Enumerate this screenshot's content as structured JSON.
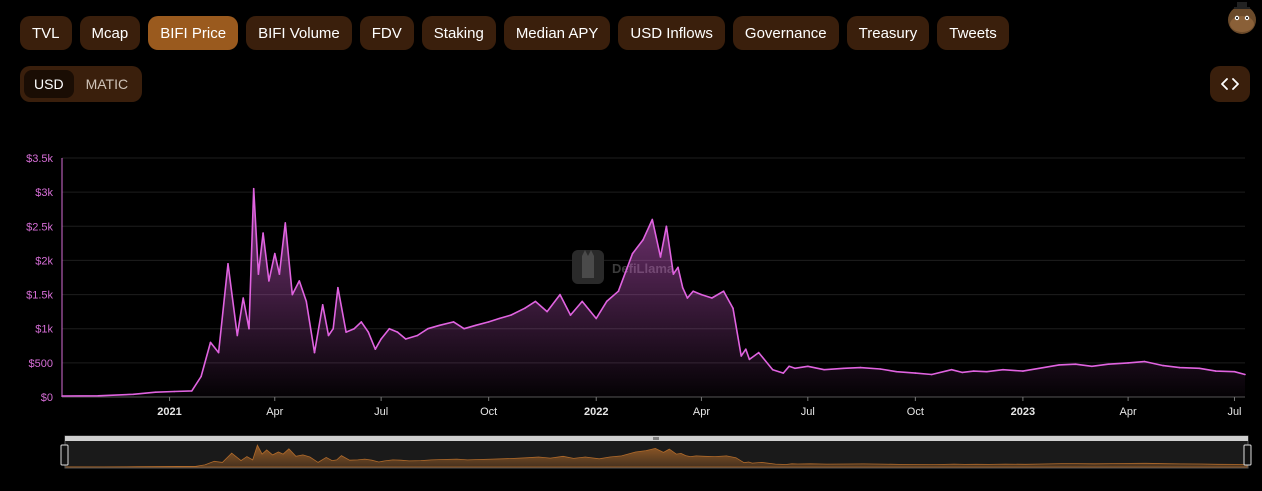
{
  "tabs": [
    {
      "label": "TVL",
      "active": false
    },
    {
      "label": "Mcap",
      "active": false
    },
    {
      "label": "BIFI Price",
      "active": true
    },
    {
      "label": "BIFI Volume",
      "active": false
    },
    {
      "label": "FDV",
      "active": false
    },
    {
      "label": "Staking",
      "active": false
    },
    {
      "label": "Median APY",
      "active": false
    },
    {
      "label": "USD Inflows",
      "active": false
    },
    {
      "label": "Governance",
      "active": false
    },
    {
      "label": "Treasury",
      "active": false
    },
    {
      "label": "Tweets",
      "active": false
    }
  ],
  "currency_toggle": {
    "options": [
      "USD",
      "MATIC"
    ],
    "selected": "USD"
  },
  "embed_icon": "code-brackets-icon",
  "avatar_icon": "llama-avatar-icon",
  "watermark": "DefiLlama",
  "colors": {
    "line": "#e063e0",
    "tab_bg": "#3a1f0c",
    "tab_active": "#9a5a1e",
    "brush": "#b06a2a"
  },
  "chart_data": {
    "type": "area",
    "series": [
      {
        "name": "",
        "x": [
          "2020-10-01",
          "2020-11-01",
          "2020-12-01",
          "2020-12-20",
          "2021-01-05",
          "2021-01-20",
          "2021-01-28",
          "2021-02-05",
          "2021-02-12",
          "2021-02-20",
          "2021-02-28",
          "2021-03-05",
          "2021-03-10",
          "2021-03-14",
          "2021-03-18",
          "2021-03-22",
          "2021-03-27",
          "2021-04-01",
          "2021-04-05",
          "2021-04-10",
          "2021-04-16",
          "2021-04-22",
          "2021-04-28",
          "2021-05-05",
          "2021-05-12",
          "2021-05-17",
          "2021-05-21",
          "2021-05-25",
          "2021-06-01",
          "2021-06-08",
          "2021-06-14",
          "2021-06-20",
          "2021-06-26",
          "2021-07-01",
          "2021-07-08",
          "2021-07-15",
          "2021-07-22",
          "2021-08-01",
          "2021-08-10",
          "2021-08-20",
          "2021-09-01",
          "2021-09-10",
          "2021-09-20",
          "2021-10-01",
          "2021-10-10",
          "2021-10-20",
          "2021-11-01",
          "2021-11-10",
          "2021-11-20",
          "2021-12-01",
          "2021-12-10",
          "2021-12-20",
          "2022-01-01",
          "2022-01-10",
          "2022-01-20",
          "2022-02-01",
          "2022-02-10",
          "2022-02-18",
          "2022-02-25",
          "2022-03-02",
          "2022-03-08",
          "2022-03-12",
          "2022-03-16",
          "2022-03-20",
          "2022-03-25",
          "2022-04-01",
          "2022-04-10",
          "2022-04-20",
          "2022-04-28",
          "2022-05-05",
          "2022-05-09",
          "2022-05-12",
          "2022-05-20",
          "2022-06-01",
          "2022-06-10",
          "2022-06-15",
          "2022-06-20",
          "2022-07-01",
          "2022-07-15",
          "2022-08-01",
          "2022-08-15",
          "2022-09-01",
          "2022-09-15",
          "2022-10-01",
          "2022-10-15",
          "2022-11-01",
          "2022-11-10",
          "2022-11-20",
          "2022-12-01",
          "2022-12-15",
          "2023-01-01",
          "2023-01-15",
          "2023-02-01",
          "2023-02-15",
          "2023-03-01",
          "2023-03-15",
          "2023-04-01",
          "2023-04-15",
          "2023-05-01",
          "2023-05-15",
          "2023-06-01",
          "2023-06-15",
          "2023-07-01",
          "2023-07-10"
        ],
        "values": [
          15,
          18,
          40,
          70,
          80,
          90,
          300,
          800,
          650,
          1950,
          900,
          1450,
          1000,
          3050,
          1800,
          2400,
          1700,
          2100,
          1800,
          2550,
          1500,
          1700,
          1400,
          650,
          1350,
          900,
          1000,
          1600,
          950,
          1000,
          1100,
          950,
          700,
          850,
          1000,
          950,
          850,
          900,
          1000,
          1050,
          1100,
          1000,
          1050,
          1100,
          1150,
          1200,
          1300,
          1400,
          1250,
          1500,
          1200,
          1400,
          1150,
          1400,
          1550,
          2100,
          2300,
          2600,
          2050,
          2500,
          1800,
          1900,
          1600,
          1450,
          1550,
          1500,
          1450,
          1550,
          1300,
          600,
          700,
          550,
          650,
          400,
          350,
          450,
          420,
          450,
          400,
          420,
          430,
          410,
          370,
          350,
          330,
          400,
          360,
          380,
          370,
          400,
          380,
          420,
          470,
          480,
          450,
          480,
          500,
          520,
          460,
          430,
          420,
          380,
          370,
          330
        ]
      }
    ],
    "x_ticks": [
      {
        "label": "2021",
        "date": "2021-01-01",
        "bold": true
      },
      {
        "label": "Apr",
        "date": "2021-04-01",
        "bold": false
      },
      {
        "label": "Jul",
        "date": "2021-07-01",
        "bold": false
      },
      {
        "label": "Oct",
        "date": "2021-10-01",
        "bold": false
      },
      {
        "label": "2022",
        "date": "2022-01-01",
        "bold": true
      },
      {
        "label": "Apr",
        "date": "2022-04-01",
        "bold": false
      },
      {
        "label": "Jul",
        "date": "2022-07-01",
        "bold": false
      },
      {
        "label": "Oct",
        "date": "2022-10-01",
        "bold": false
      },
      {
        "label": "2023",
        "date": "2023-01-01",
        "bold": true
      },
      {
        "label": "Apr",
        "date": "2023-04-01",
        "bold": false
      },
      {
        "label": "Jul",
        "date": "2023-07-01",
        "bold": false
      }
    ],
    "y_ticks": [
      {
        "label": "$0",
        "value": 0
      },
      {
        "label": "$500",
        "value": 500
      },
      {
        "label": "$1k",
        "value": 1000
      },
      {
        "label": "$1.5k",
        "value": 1500
      },
      {
        "label": "$2k",
        "value": 2000
      },
      {
        "label": "$2.5k",
        "value": 2500
      },
      {
        "label": "$3k",
        "value": 3000
      },
      {
        "label": "$3.5k",
        "value": 3500
      }
    ],
    "ylim": [
      0,
      3500
    ],
    "xlim": [
      "2020-10-01",
      "2023-07-10"
    ],
    "grid": true,
    "legend": "none"
  }
}
